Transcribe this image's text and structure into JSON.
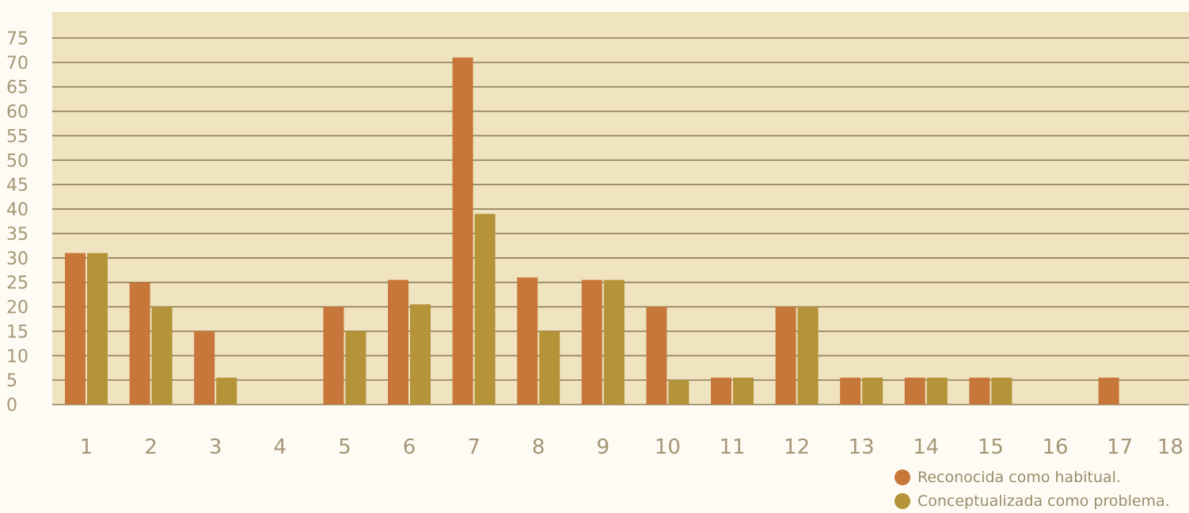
{
  "chart_data": {
    "type": "bar",
    "title": "",
    "xlabel": "",
    "ylabel": "",
    "ylim": [
      0,
      75
    ],
    "yticks": [
      0,
      5,
      10,
      15,
      20,
      25,
      30,
      35,
      40,
      45,
      50,
      55,
      60,
      65,
      70,
      75
    ],
    "categories": [
      "1",
      "2",
      "3",
      "4",
      "5",
      "6",
      "7",
      "8",
      "9",
      "10",
      "11",
      "12",
      "13",
      "14",
      "15",
      "16",
      "17",
      "18"
    ],
    "grid": true,
    "legend_position": "bottom-right",
    "series": [
      {
        "name": "Reconocida como habitual.",
        "color": "#c8773a",
        "values": [
          31,
          25,
          15,
          0,
          20,
          25.5,
          71,
          26,
          25.5,
          20,
          5.5,
          20,
          5.5,
          5.5,
          5.5,
          0,
          5.5,
          0
        ]
      },
      {
        "name": "Conceptualizada como problema.",
        "color": "#b49339",
        "values": [
          31,
          20,
          5.5,
          0,
          15,
          20.5,
          39,
          15,
          25.5,
          5,
          5.5,
          20,
          5.5,
          5.5,
          5.5,
          0,
          0,
          0
        ]
      }
    ]
  },
  "colors": {
    "plot_background": "#f0e3c0",
    "page_background": "#fdfbf3",
    "gridline": "#8c7d58",
    "tick_text": "#a59676"
  }
}
